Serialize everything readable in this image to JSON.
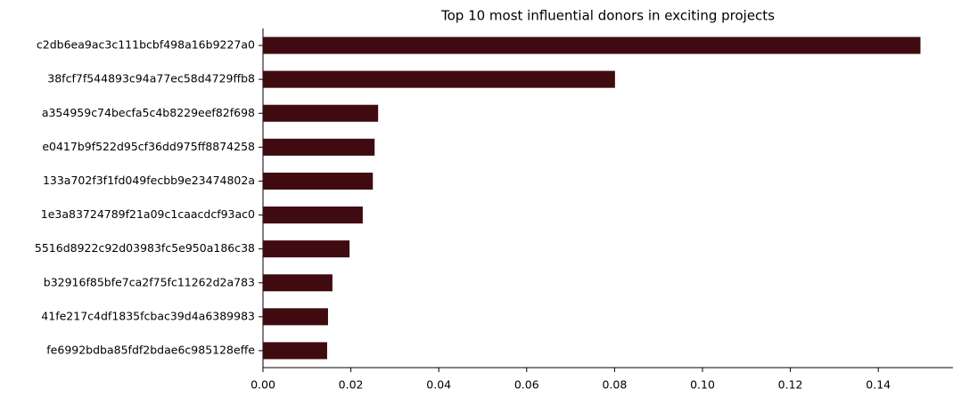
{
  "chart_data": {
    "type": "barh",
    "title": "Top 10 most influential donors in exciting projects",
    "categories": [
      "c2db6ea9ac3c111bcbf498a16b9227a0",
      "38fcf7f544893c94a77ec58d4729ffb8",
      "a354959c74becfa5c4b8229eef82f698",
      "e0417b9f522d95cf36dd975ff8874258",
      "133a702f3f1fd049fecbb9e23474802a",
      "1e3a83724789f21a09c1caacdcf93ac0",
      "5516d8922c92d03983fc5e950a186c38",
      "b32916f85bfe7ca2f75fc11262d2a783",
      "41fe217c4df1835fcbac39d4a6389983",
      "fe6992bdba85fdf2bdae6c985128effe"
    ],
    "values": [
      0.1496,
      0.0801,
      0.0262,
      0.0254,
      0.025,
      0.0227,
      0.0197,
      0.0158,
      0.0148,
      0.0146
    ],
    "color": "#400b10",
    "xlim": [
      0,
      0.157
    ],
    "xticks": [
      {
        "value": 0,
        "label": "0.00"
      },
      {
        "value": 0.02,
        "label": "0.02"
      },
      {
        "value": 0.04,
        "label": "0.04"
      },
      {
        "value": 0.06,
        "label": "0.06"
      },
      {
        "value": 0.08,
        "label": "0.08"
      },
      {
        "value": 0.1,
        "label": "0.10"
      },
      {
        "value": 0.12,
        "label": "0.12"
      },
      {
        "value": 0.14,
        "label": "0.14"
      }
    ],
    "grid": false
  }
}
